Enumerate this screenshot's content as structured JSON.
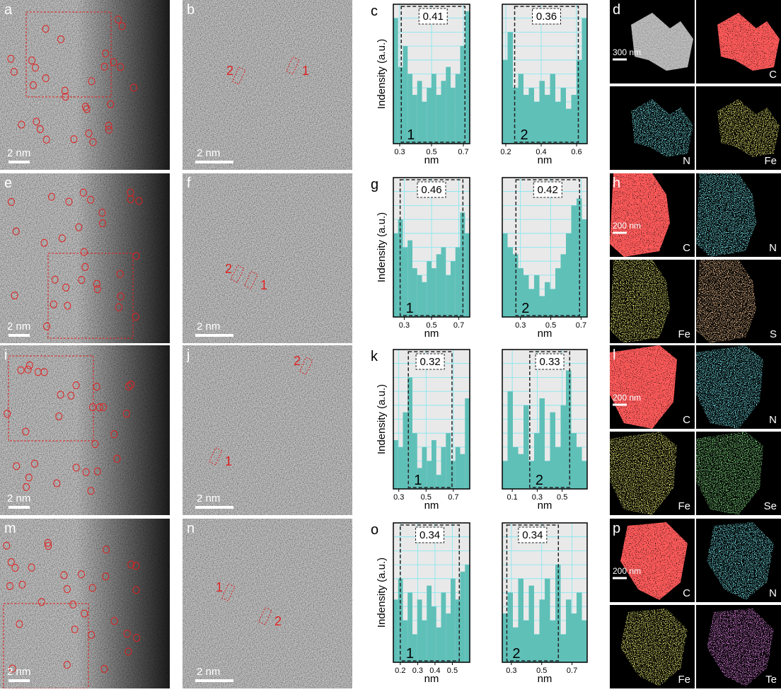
{
  "rows": [
    {
      "image_label": "a",
      "image_scale": "2 nm",
      "zoom_label": "b",
      "zoom_scale": "2 nm",
      "zoom_sites": [
        "2",
        "1"
      ],
      "profile_label": "c",
      "eds_label": "d",
      "eds_scale": "300 nm",
      "eds_maps": [
        "C",
        "N",
        "Fe"
      ],
      "eds_colors": [
        "#ff1a1a",
        "#2ec4d0",
        "#d4d02a"
      ]
    },
    {
      "image_label": "e",
      "image_scale": "2 nm",
      "zoom_label": "f",
      "zoom_scale": "2 nm",
      "zoom_sites": [
        "2",
        "1"
      ],
      "profile_label": "g",
      "eds_label": "h",
      "eds_scale": "200 nm",
      "eds_maps": [
        "C",
        "N",
        "Fe",
        "S"
      ],
      "eds_colors": [
        "#ff1a1a",
        "#2ec4d0",
        "#c8c82a",
        "#e08a4a"
      ]
    },
    {
      "image_label": "i",
      "image_scale": "2 nm",
      "zoom_label": "j",
      "zoom_scale": "2 nm",
      "zoom_sites": [
        "2",
        "1"
      ],
      "profile_label": "k",
      "eds_label": "l",
      "eds_scale": "200 nm",
      "eds_maps": [
        "C",
        "N",
        "Fe",
        "Se"
      ],
      "eds_colors": [
        "#ff1a1a",
        "#2ec4d0",
        "#c8c82a",
        "#3cb83c"
      ]
    },
    {
      "image_label": "m",
      "image_scale": "2 nm",
      "zoom_label": "n",
      "zoom_scale": "2 nm",
      "zoom_sites": [
        "1",
        "2"
      ],
      "profile_label": "o",
      "eds_label": "p",
      "eds_scale": "200 nm",
      "eds_maps": [
        "C",
        "N",
        "Fe",
        "Te"
      ],
      "eds_colors": [
        "#ff1a1a",
        "#2ec4d0",
        "#c8c82a",
        "#c23cc8"
      ]
    }
  ],
  "chart_data": [
    {
      "type": "histogram",
      "ylabel": "Indensity (a.u.)",
      "xlabel": "nm",
      "xlim": [
        0.26,
        0.74
      ],
      "xticks": [
        0.3,
        0.5,
        0.7
      ],
      "ylim": [
        0,
        1
      ],
      "color": "#5fc0b8",
      "grid": true,
      "span": [
        0.31,
        0.71
      ],
      "distance": 0.41,
      "site": "1",
      "bins": [
        0.26,
        0.29,
        0.32,
        0.35,
        0.38,
        0.41,
        0.44,
        0.47,
        0.5,
        0.53,
        0.56,
        0.59,
        0.62,
        0.65,
        0.68,
        0.71,
        0.74
      ],
      "values": [
        0.9,
        0.55,
        0.7,
        0.5,
        0.35,
        0.45,
        0.3,
        0.4,
        0.5,
        0.35,
        0.45,
        0.55,
        0.4,
        0.5,
        0.7,
        0.95
      ]
    },
    {
      "type": "histogram",
      "xlabel": "nm",
      "xlim": [
        0.18,
        0.66
      ],
      "xticks": [
        0.2,
        0.4,
        0.6
      ],
      "ylim": [
        0,
        1
      ],
      "color": "#5fc0b8",
      "grid": true,
      "span": [
        0.25,
        0.61
      ],
      "distance": 0.36,
      "site": "2",
      "bins": [
        0.18,
        0.21,
        0.24,
        0.27,
        0.3,
        0.33,
        0.36,
        0.39,
        0.42,
        0.45,
        0.48,
        0.51,
        0.54,
        0.57,
        0.6,
        0.63,
        0.66
      ],
      "values": [
        0.6,
        0.8,
        0.4,
        0.5,
        0.35,
        0.4,
        0.3,
        0.45,
        0.35,
        0.5,
        0.3,
        0.4,
        0.25,
        0.35,
        0.6,
        0.9
      ]
    },
    {
      "type": "histogram",
      "ylabel": "Indensity (a.u.)",
      "xlabel": "nm",
      "xlim": [
        0.22,
        0.78
      ],
      "xticks": [
        0.3,
        0.5,
        0.7
      ],
      "ylim": [
        0,
        1
      ],
      "color": "#5fc0b8",
      "grid": true,
      "span": [
        0.27,
        0.73
      ],
      "distance": 0.46,
      "site": "1",
      "bins": [
        0.22,
        0.255,
        0.29,
        0.325,
        0.36,
        0.395,
        0.43,
        0.465,
        0.5,
        0.535,
        0.57,
        0.605,
        0.64,
        0.675,
        0.71,
        0.745,
        0.78
      ],
      "values": [
        0.6,
        0.7,
        0.5,
        0.55,
        0.35,
        0.3,
        0.25,
        0.4,
        0.35,
        0.45,
        0.5,
        0.3,
        0.4,
        0.5,
        0.75,
        0.6
      ]
    },
    {
      "type": "histogram",
      "xlabel": "nm",
      "xlim": [
        0.18,
        0.74
      ],
      "xticks": [
        0.3,
        0.5,
        0.7
      ],
      "ylim": [
        0,
        1
      ],
      "color": "#5fc0b8",
      "grid": true,
      "span": [
        0.27,
        0.69
      ],
      "distance": 0.42,
      "site": "2",
      "bins": [
        0.18,
        0.215,
        0.25,
        0.285,
        0.32,
        0.355,
        0.39,
        0.425,
        0.46,
        0.495,
        0.53,
        0.565,
        0.6,
        0.635,
        0.67,
        0.705,
        0.74
      ],
      "values": [
        0.6,
        0.5,
        0.45,
        0.35,
        0.3,
        0.2,
        0.3,
        0.15,
        0.25,
        0.2,
        0.35,
        0.45,
        0.6,
        0.8,
        0.85,
        0.7
      ]
    },
    {
      "type": "histogram",
      "ylabel": "Indensity (a.u.)",
      "xlabel": "nm",
      "xlim": [
        0.26,
        0.82
      ],
      "xticks": [
        0.3,
        0.5,
        0.7
      ],
      "ylim": [
        0,
        1
      ],
      "color": "#5fc0b8",
      "grid": true,
      "span": [
        0.37,
        0.69
      ],
      "distance": 0.32,
      "site": "1",
      "bins": [
        0.26,
        0.295,
        0.33,
        0.365,
        0.4,
        0.435,
        0.47,
        0.505,
        0.54,
        0.575,
        0.61,
        0.645,
        0.68,
        0.715,
        0.75,
        0.785,
        0.82
      ],
      "values": [
        0.35,
        0.3,
        0.55,
        0.8,
        0.4,
        0.15,
        0.3,
        0.2,
        0.35,
        0.1,
        0.3,
        0.4,
        0.2,
        0.3,
        0.25,
        0.65
      ]
    },
    {
      "type": "histogram",
      "xlabel": "nm",
      "xlim": [
        0.02,
        0.7
      ],
      "xticks": [
        0.1,
        0.3,
        0.5
      ],
      "ylim": [
        0,
        1
      ],
      "color": "#5fc0b8",
      "grid": true,
      "span": [
        0.24,
        0.56
      ],
      "distance": 0.33,
      "site": "2",
      "bins": [
        0.02,
        0.0625,
        0.105,
        0.1475,
        0.19,
        0.2325,
        0.275,
        0.3175,
        0.36,
        0.4025,
        0.445,
        0.4875,
        0.53,
        0.5725,
        0.615,
        0.6575,
        0.7
      ],
      "values": [
        0.2,
        0.7,
        0.3,
        0.25,
        0.6,
        0.2,
        0.4,
        0.65,
        0.2,
        0.55,
        0.3,
        0.6,
        0.85,
        0.4,
        0.3,
        0.2
      ]
    },
    {
      "type": "histogram",
      "ylabel": "Indensity (a.u.)",
      "xlabel": "nm",
      "xlim": [
        0.16,
        0.6
      ],
      "xticks": [
        0.2,
        0.3,
        0.4,
        0.5
      ],
      "ylim": [
        0,
        1
      ],
      "color": "#5fc0b8",
      "grid": true,
      "span": [
        0.2,
        0.54
      ],
      "distance": 0.34,
      "site": "1",
      "bins": [
        0.16,
        0.1875,
        0.215,
        0.2425,
        0.27,
        0.2975,
        0.325,
        0.3525,
        0.38,
        0.4075,
        0.435,
        0.4625,
        0.49,
        0.5175,
        0.545,
        0.5725,
        0.6
      ],
      "values": [
        0.45,
        0.6,
        0.3,
        0.5,
        0.2,
        0.45,
        0.3,
        0.55,
        0.4,
        0.25,
        0.5,
        0.35,
        0.6,
        0.45,
        0.65,
        0.7
      ]
    },
    {
      "type": "histogram",
      "xlabel": "nm",
      "xlim": [
        0.24,
        0.8
      ],
      "xticks": [
        0.3,
        0.5,
        0.7
      ],
      "ylim": [
        0,
        1
      ],
      "color": "#5fc0b8",
      "grid": true,
      "span": [
        0.27,
        0.61
      ],
      "distance": 0.34,
      "site": "2",
      "bins": [
        0.24,
        0.275,
        0.31,
        0.345,
        0.38,
        0.415,
        0.45,
        0.485,
        0.52,
        0.555,
        0.59,
        0.625,
        0.66,
        0.695,
        0.73,
        0.765,
        0.8
      ],
      "values": [
        0.35,
        0.5,
        0.25,
        0.6,
        0.3,
        0.55,
        0.2,
        0.45,
        0.6,
        0.3,
        0.7,
        0.2,
        0.45,
        0.35,
        0.5,
        0.3
      ]
    }
  ]
}
